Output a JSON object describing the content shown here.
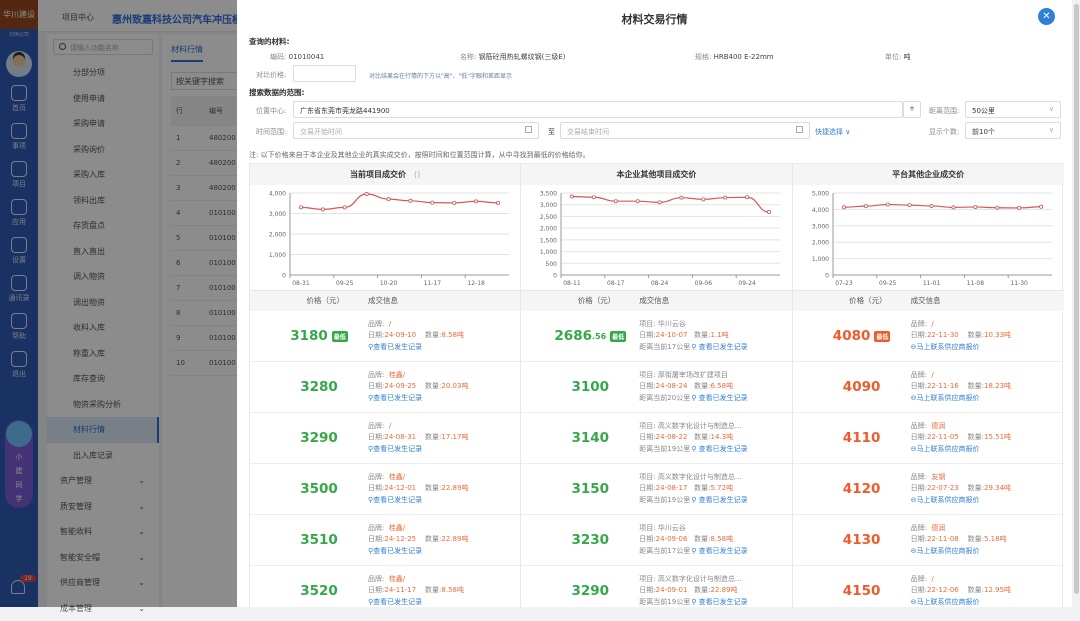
{
  "app": {
    "brand": "华川建设",
    "switch_company": "切换公司",
    "nav": [
      {
        "label": "首页",
        "icon": "home-icon"
      },
      {
        "label": "事项",
        "icon": "checkbox-icon"
      },
      {
        "label": "项目",
        "icon": "building-icon"
      },
      {
        "label": "应用",
        "icon": "apps-icon"
      },
      {
        "label": "设置",
        "icon": "gear-icon"
      },
      {
        "label": "通讯录",
        "icon": "contacts-icon"
      },
      {
        "label": "帮助",
        "icon": "help-icon"
      },
      {
        "label": "退出",
        "icon": "power-icon"
      }
    ],
    "assistant": [
      "小",
      "建",
      "同",
      "学"
    ],
    "notifications": "19"
  },
  "header": {
    "tab": "项目中心",
    "project_title": "惠州致嘉科技公司汽车冲压模具"
  },
  "menu": {
    "search_placeholder": "请输入功能名称",
    "items": [
      "分部分项",
      "使用申请",
      "采购申请",
      "采购询价",
      "采购入库",
      "领料出库",
      "存货盘点",
      "直入直出",
      "调入物资",
      "调出物资",
      "收料入库",
      "称重入库",
      "库存查询",
      "物资采购分析",
      "材料行情",
      "出入库记录"
    ],
    "active": "材料行情",
    "groups": [
      "资产管理",
      "质安管理",
      "智能收料",
      "智能安全帽",
      "供应商管理",
      "成本管理"
    ]
  },
  "content": {
    "tab": "材料行情",
    "search_placeholder": "按关键字搜索",
    "headers": [
      "行",
      "编号"
    ],
    "rows": [
      [
        "1",
        "480200"
      ],
      [
        "2",
        "480200"
      ],
      [
        "3",
        "480200"
      ],
      [
        "4",
        "010100"
      ],
      [
        "5",
        "010100"
      ],
      [
        "6",
        "010100"
      ],
      [
        "7",
        "010100"
      ],
      [
        "8",
        "010100"
      ],
      [
        "9",
        "010100"
      ],
      [
        "10",
        "010100"
      ]
    ]
  },
  "drawer": {
    "title": "材料交易行情",
    "close_icon": "close-icon",
    "material_section": "查询的材料:",
    "code_label": "编码:",
    "code": "01010041",
    "name_label": "名称:",
    "name": "钢筋砼用热轧螺纹钢(三级E)",
    "spec_label": "规格:",
    "spec": "HRB400 E-22mm",
    "unit_label": "单位:",
    "unit": "吨",
    "compare_label": "对比价格:",
    "compare_value": "",
    "compare_hint": "对比结果会在行情的下方以\"高\"、\"低\"字眼和差距显示",
    "range_section": "搜索数据的范围:",
    "location_label": "位置中心:",
    "location": "广东省东莞市莞龙路441900",
    "distance_label": "距离范围:",
    "distance": "50公里",
    "time_label": "时间范围:",
    "start_placeholder": "交易开始时间",
    "to": "至",
    "end_placeholder": "交易结束时间",
    "quick_select": "快捷选择",
    "count_label": "显示个数:",
    "count": "前10个",
    "note": "注: 以下价格来自于本企业及其他企业的真实成交价，按照时间和位置范围计算，从中寻找到最低的价格给你。",
    "price_header": "价格（元）",
    "info_header": "成交信息",
    "lowest_badge": "最低",
    "brand_label": "品牌:",
    "date_label": "日期:",
    "qty_label": "数量:",
    "project_label": "项目:",
    "history_link": "查看已发生记录",
    "contact_link": "马上联系供应商报价",
    "colors": {
      "green": "#35a84a",
      "orange": "#ef5b2b",
      "line": "#d05a5a",
      "accent": "#2f7fd6"
    },
    "current": [
      {
        "price": "3180",
        "brand": "/",
        "date": "24-09-10",
        "qty": "8.58吨",
        "lowest": true
      },
      {
        "price": "3280",
        "brand": "桂鑫/",
        "date": "24-09-25",
        "qty": "20.03吨"
      },
      {
        "price": "3290",
        "brand": "/",
        "date": "24-08-31",
        "qty": "17.17吨"
      },
      {
        "price": "3500",
        "brand": "桂鑫/",
        "date": "24-12-01",
        "qty": "22.89吨"
      },
      {
        "price": "3510",
        "brand": "桂鑫/",
        "date": "24-12-25",
        "qty": "22.89吨"
      },
      {
        "price": "3520",
        "brand": "桂鑫/",
        "date": "24-11-17",
        "qty": "8.58吨"
      }
    ],
    "enterprise": [
      {
        "price": "2686",
        "price_dec": ".56",
        "project": "华川云谷",
        "date": "24-10-07",
        "qty": "1.1吨",
        "distance": "距离当前17公里",
        "lowest": true
      },
      {
        "price": "3100",
        "project": "厚街屠宰场改扩建项目",
        "date": "24-08-24",
        "qty": "6.58吨",
        "distance": "距离当前20公里"
      },
      {
        "price": "3140",
        "project": "高义数字化设计与制造总...",
        "date": "24-08-22",
        "qty": "14.3吨",
        "distance": "距离当前19公里"
      },
      {
        "price": "3150",
        "project": "高义数字化设计与制造总...",
        "date": "24-08-17",
        "qty": "5.72吨",
        "distance": "距离当前19公里"
      },
      {
        "price": "3230",
        "project": "华川云谷",
        "date": "24-09-06",
        "qty": "8.58吨",
        "distance": "距离当前17公里"
      },
      {
        "price": "3290",
        "project": "高义数字化设计与制造总...",
        "date": "24-09-01",
        "qty": "22.89吨",
        "distance": "距离当前19公里"
      }
    ],
    "platform": [
      {
        "price": "4080",
        "brand": "/",
        "date": "22-11-30",
        "qty": "10.33吨",
        "lowest": true
      },
      {
        "price": "4090",
        "brand": "/",
        "date": "22-11-16",
        "qty": "18.23吨"
      },
      {
        "price": "4110",
        "brand": "德润",
        "date": "22-11-05",
        "qty": "15.51吨"
      },
      {
        "price": "4120",
        "brand": "友钢",
        "date": "22-07-23",
        "qty": "29.34吨"
      },
      {
        "price": "4130",
        "brand": "德润",
        "date": "22-11-08",
        "qty": "5.18吨"
      },
      {
        "price": "4150",
        "brand": "/",
        "date": "22-12-06",
        "qty": "12.95吨"
      }
    ]
  },
  "chart_data": [
    {
      "type": "line",
      "title": "当前项目成交价",
      "title_suffix": "()",
      "categories": [
        "08-31",
        "",
        "09-25",
        "",
        "10-20",
        "",
        "11-17",
        "",
        "12-18",
        ""
      ],
      "values": [
        3300,
        3200,
        3300,
        3950,
        3700,
        3620,
        3530,
        3520,
        3590,
        3520
      ],
      "ylim": [
        0,
        4000
      ],
      "yticks": [
        0,
        1000,
        2000,
        3000,
        4000
      ],
      "grid": true
    },
    {
      "type": "line",
      "title": "本企业其他项目成交价",
      "categories": [
        "08-11",
        "",
        "08-17",
        "",
        "08-24",
        "",
        "09-06",
        "",
        "09-24",
        ""
      ],
      "values": [
        3350,
        3320,
        3150,
        3150,
        3100,
        3300,
        3230,
        3300,
        3320,
        2690
      ],
      "ylim": [
        0,
        3500
      ],
      "yticks": [
        0,
        500,
        1000,
        1500,
        2000,
        2500,
        3000,
        3500
      ],
      "grid": true
    },
    {
      "type": "line",
      "title": "平台其他企业成交价",
      "categories": [
        "07-23",
        "",
        "09-25",
        "",
        "11-01",
        "",
        "11-08",
        "",
        "11-30",
        ""
      ],
      "values": [
        4130,
        4200,
        4300,
        4260,
        4210,
        4120,
        4150,
        4100,
        4090,
        4160
      ],
      "ylim": [
        0,
        5000
      ],
      "yticks": [
        0,
        1000,
        2000,
        3000,
        4000,
        5000
      ],
      "grid": true
    }
  ]
}
